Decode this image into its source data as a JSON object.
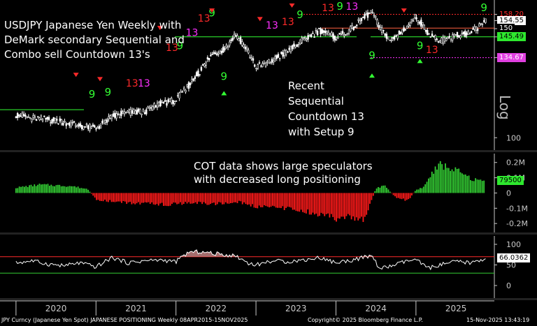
{
  "annotations": {
    "title_lines": [
      "USDJPY Japanese Yen Weekly with",
      "DeMark secondary Sequential and",
      "Combo sell Countdown 13's"
    ],
    "sequential_note_lines": [
      "Recent",
      "Sequential",
      "Countdown 13",
      "with Setup 9"
    ],
    "cot_note_lines": [
      "COT data shows large speculators",
      "with decreased long positioning"
    ]
  },
  "footer": {
    "left": "JPY Curncy (Japanese Yen Spot) JAPANESE POSITIONING Weekly 08APR2015-15NOV2025",
    "center": "Copyright© 2025 Bloomberg Finance L.P.",
    "right": "15-Nov-2025 13:43:19"
  },
  "chart_data": [
    {
      "type": "candlestick",
      "panel": "price",
      "scale": "log",
      "y_ticks": [
        100
      ],
      "y_tick_labels": [
        "100"
      ],
      "price_labels": [
        {
          "text": "158.20",
          "value": 158.2,
          "color": "#ff2a2a",
          "bg": "#000000"
        },
        {
          "text": "154.55",
          "value": 154.55,
          "color": "#000000",
          "bg": "#ffffff"
        },
        {
          "text": "150",
          "value": 150,
          "color": "#ffffff",
          "bg": "#000000"
        },
        {
          "text": "145.49",
          "value": 145.49,
          "color": "#000000",
          "bg": "#2ee82e"
        },
        {
          "text": "134.67",
          "value": 134.67,
          "color": "#ffffff",
          "bg": "#e040e0"
        }
      ],
      "log_label": "Log",
      "x": [
        2020.0,
        2020.2,
        2020.4,
        2020.6,
        2020.8,
        2021.0,
        2021.2,
        2021.4,
        2021.6,
        2021.8,
        2022.0,
        2022.15,
        2022.3,
        2022.45,
        2022.6,
        2022.75,
        2022.9,
        2023.0,
        2023.2,
        2023.4,
        2023.6,
        2023.8,
        2024.0,
        2024.2,
        2024.45,
        2024.55,
        2024.7,
        2024.9,
        2025.0,
        2025.15,
        2025.3,
        2025.5,
        2025.7,
        2025.87
      ],
      "close": [
        109,
        107.5,
        107,
        106,
        104.5,
        103.5,
        108,
        110,
        110,
        113.5,
        115,
        121,
        128,
        136,
        139,
        147,
        138,
        130,
        133,
        138,
        144,
        149,
        145,
        150,
        160,
        150,
        143,
        152,
        157,
        148,
        143,
        146,
        148,
        154.5
      ],
      "colors": {
        "candle": "#ffffff",
        "setup_9": "#33ff33",
        "countdown": "#ff2a2a",
        "combo_13": "#ff30ff",
        "arrow_down": "#ff2a2a",
        "arrow_up": "#33ff33"
      }
    },
    {
      "type": "bar",
      "panel": "cot_positioning",
      "y_ticks": [
        200000,
        100000,
        0,
        -100000,
        -200000
      ],
      "y_tick_labels": [
        "0.2M",
        "0.1M",
        "0",
        "-0.1M",
        "-0.2M"
      ],
      "current_label": "79500",
      "current_value": 79500,
      "x": [
        2020.0,
        2020.3,
        2020.5,
        2020.7,
        2020.9,
        2021.0,
        2021.3,
        2021.6,
        2021.9,
        2022.2,
        2022.5,
        2022.8,
        2023.0,
        2023.2,
        2023.5,
        2023.8,
        2024.0,
        2024.2,
        2024.35,
        2024.5,
        2024.6,
        2024.75,
        2024.9,
        2025.0,
        2025.1,
        2025.2,
        2025.3,
        2025.5,
        2025.7,
        2025.85
      ],
      "values": [
        35000,
        55000,
        50000,
        45000,
        25000,
        -45000,
        -60000,
        -70000,
        -75000,
        -65000,
        -70000,
        -60000,
        -90000,
        -85000,
        -110000,
        -140000,
        -165000,
        -160000,
        -180000,
        30000,
        50000,
        -30000,
        -50000,
        20000,
        40000,
        130000,
        185000,
        150000,
        90000,
        79500
      ],
      "colors": {
        "positive": "#33cc33",
        "negative": "#ff1a1a"
      }
    },
    {
      "type": "line",
      "panel": "rsi",
      "y_ticks": [
        100,
        50,
        0
      ],
      "y_tick_labels": [
        "100",
        "50",
        "0"
      ],
      "current_label": "66.0362",
      "current_value": 66.0362,
      "reference_lines": [
        {
          "value": 70,
          "color": "#ff2a2a"
        },
        {
          "value": 30,
          "color": "#33cc33"
        }
      ],
      "x": [
        2020.0,
        2020.2,
        2020.4,
        2020.6,
        2020.8,
        2021.0,
        2021.2,
        2021.4,
        2021.6,
        2021.8,
        2022.0,
        2022.15,
        2022.3,
        2022.45,
        2022.6,
        2022.75,
        2022.9,
        2023.0,
        2023.2,
        2023.4,
        2023.6,
        2023.8,
        2024.0,
        2024.2,
        2024.45,
        2024.55,
        2024.7,
        2024.9,
        2025.0,
        2025.15,
        2025.3,
        2025.5,
        2025.7,
        2025.87
      ],
      "values": [
        55,
        60,
        52,
        48,
        55,
        45,
        68,
        55,
        60,
        62,
        58,
        80,
        82,
        78,
        75,
        72,
        55,
        50,
        60,
        58,
        62,
        68,
        55,
        62,
        72,
        40,
        48,
        60,
        62,
        42,
        50,
        58,
        55,
        66.04
      ],
      "overbought_fill_color": "#c08080"
    }
  ],
  "x_axis": {
    "labels": [
      "2020",
      "2021",
      "2022",
      "2023",
      "2024",
      "2025"
    ],
    "years": [
      2020,
      2021,
      2022,
      2023,
      2024,
      2025
    ]
  },
  "colors": {
    "background": "#000000",
    "axis": "#c8c8c8",
    "panel_divider": "#ffffff"
  }
}
